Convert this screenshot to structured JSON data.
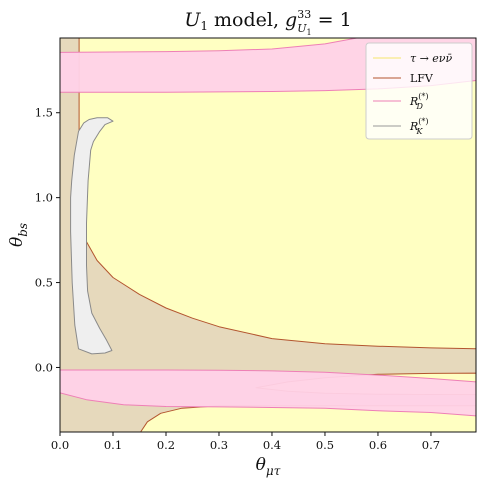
{
  "chart_data": {
    "type": "area",
    "title": {
      "main": "U",
      "main_sub": "1",
      "rest": " model, ",
      "g": "g",
      "g_sup": "33",
      "g_sub": "U",
      "g_sub_sub": "1",
      "eq": " = 1"
    },
    "xlabel": {
      "main": "θ",
      "sub": "μτ"
    },
    "ylabel": {
      "main": "θ",
      "sub": "bs"
    },
    "xlim": [
      0.0,
      0.785
    ],
    "ylim": [
      -0.38,
      1.94
    ],
    "xticks": [
      "0.0",
      "0.1",
      "0.2",
      "0.3",
      "0.4",
      "0.5",
      "0.6",
      "0.7"
    ],
    "xtick_values": [
      0.0,
      0.1,
      0.2,
      0.3,
      0.4,
      0.5,
      0.6,
      0.7
    ],
    "yticks": [
      "0.0",
      "0.5",
      "1.0",
      "1.5"
    ],
    "ytick_values": [
      0.0,
      0.5,
      1.0,
      1.5
    ],
    "legend_position": "top-right",
    "legend": [
      {
        "label": "τ → eνν̄",
        "color": "#f5e46c"
      },
      {
        "label": "LFV",
        "color": "#b3552f"
      },
      {
        "label_main": "R",
        "label_sub": "D",
        "label_sup": "(*)",
        "color": "#ee7fb6"
      },
      {
        "label_main": "R",
        "label_sub": "K",
        "label_sup": "(*)",
        "color": "#999999"
      }
    ],
    "colors": {
      "tau_fill": "#ffffc2",
      "lfv_fill": "#e6d9bc",
      "lfv_edge": "#b3552f",
      "rd_fill": "#ffd2e8",
      "rd_edge": "#ee7fb6",
      "rk_fill": "#efefef",
      "rk_edge": "#8a8a8a"
    },
    "regions": [
      {
        "name": "tau-e-nu-nu",
        "boundary": [
          [
            0.0,
            -0.38
          ],
          [
            0.785,
            -0.38
          ],
          [
            0.785,
            1.94
          ],
          [
            0.0,
            1.94
          ]
        ]
      },
      {
        "name": "LFV",
        "boundary": [
          [
            0.0,
            1.94
          ],
          [
            0.036,
            1.94
          ],
          [
            0.036,
            1.0
          ],
          [
            0.04,
            0.85
          ],
          [
            0.05,
            0.74
          ],
          [
            0.07,
            0.63
          ],
          [
            0.1,
            0.53
          ],
          [
            0.15,
            0.43
          ],
          [
            0.2,
            0.35
          ],
          [
            0.25,
            0.29
          ],
          [
            0.3,
            0.24
          ],
          [
            0.4,
            0.17
          ],
          [
            0.5,
            0.14
          ],
          [
            0.6,
            0.125
          ],
          [
            0.7,
            0.115
          ],
          [
            0.785,
            0.11
          ],
          [
            0.785,
            -0.226
          ],
          [
            0.5,
            -0.226
          ],
          [
            0.4,
            -0.226
          ],
          [
            0.3,
            -0.226
          ],
          [
            0.23,
            -0.24
          ],
          [
            0.19,
            -0.27
          ],
          [
            0.165,
            -0.32
          ],
          [
            0.152,
            -0.38
          ],
          [
            0.0,
            -0.38
          ]
        ]
      },
      {
        "name": "LFV-island",
        "boundary": [
          [
            0.37,
            -0.12
          ],
          [
            0.43,
            -0.085
          ],
          [
            0.5,
            -0.06
          ],
          [
            0.6,
            -0.04
          ],
          [
            0.7,
            -0.035
          ],
          [
            0.785,
            -0.033
          ],
          [
            0.785,
            -0.16
          ],
          [
            0.7,
            -0.159
          ],
          [
            0.6,
            -0.158
          ],
          [
            0.5,
            -0.152
          ],
          [
            0.43,
            -0.14
          ]
        ]
      },
      {
        "name": "RD-band-top",
        "boundary": [
          [
            0.0,
            1.62
          ],
          [
            0.2,
            1.62
          ],
          [
            0.4,
            1.625
          ],
          [
            0.5,
            1.63
          ],
          [
            0.6,
            1.64
          ],
          [
            0.7,
            1.66
          ],
          [
            0.785,
            1.69
          ],
          [
            0.785,
            1.94
          ],
          [
            0.56,
            1.94
          ],
          [
            0.5,
            1.905
          ],
          [
            0.4,
            1.875
          ],
          [
            0.3,
            1.865
          ],
          [
            0.2,
            1.86
          ],
          [
            0.0,
            1.855
          ]
        ]
      },
      {
        "name": "RD-band-bottom",
        "boundary": [
          [
            0.0,
            -0.015
          ],
          [
            0.2,
            -0.015
          ],
          [
            0.3,
            -0.016
          ],
          [
            0.4,
            -0.02
          ],
          [
            0.5,
            -0.028
          ],
          [
            0.6,
            -0.045
          ],
          [
            0.7,
            -0.065
          ],
          [
            0.785,
            -0.085
          ],
          [
            0.785,
            -0.285
          ],
          [
            0.7,
            -0.265
          ],
          [
            0.6,
            -0.255
          ],
          [
            0.5,
            -0.24
          ],
          [
            0.4,
            -0.236
          ],
          [
            0.3,
            -0.232
          ],
          [
            0.2,
            -0.23
          ],
          [
            0.12,
            -0.22
          ],
          [
            0.05,
            -0.19
          ],
          [
            0.0,
            -0.15
          ]
        ]
      },
      {
        "name": "RK-region",
        "boundary": [
          [
            0.027,
            1.25
          ],
          [
            0.035,
            1.39
          ],
          [
            0.045,
            1.44
          ],
          [
            0.055,
            1.46
          ],
          [
            0.07,
            1.47
          ],
          [
            0.09,
            1.47
          ],
          [
            0.1,
            1.45
          ],
          [
            0.085,
            1.43
          ],
          [
            0.075,
            1.39
          ],
          [
            0.063,
            1.33
          ],
          [
            0.058,
            1.28
          ],
          [
            0.053,
            1.1
          ],
          [
            0.05,
            0.85
          ],
          [
            0.05,
            0.6
          ],
          [
            0.052,
            0.45
          ],
          [
            0.06,
            0.32
          ],
          [
            0.075,
            0.23
          ],
          [
            0.088,
            0.16
          ],
          [
            0.098,
            0.1
          ],
          [
            0.085,
            0.085
          ],
          [
            0.06,
            0.08
          ],
          [
            0.035,
            0.11
          ],
          [
            0.028,
            0.25
          ],
          [
            0.023,
            0.5
          ],
          [
            0.02,
            0.8
          ],
          [
            0.02,
            1.0
          ],
          [
            0.022,
            1.1
          ]
        ]
      }
    ]
  }
}
